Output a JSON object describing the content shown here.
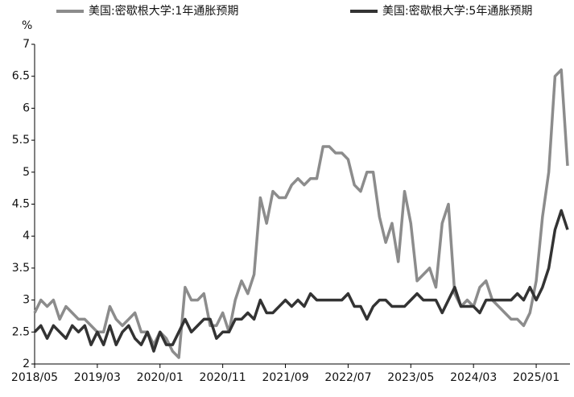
{
  "chart_data": {
    "type": "line",
    "y_label": "%",
    "categories": [
      "2018/05",
      null,
      null,
      null,
      null,
      null,
      null,
      null,
      null,
      null,
      "2019/03",
      null,
      null,
      null,
      null,
      null,
      null,
      null,
      null,
      null,
      "2020/01",
      null,
      null,
      null,
      null,
      null,
      null,
      null,
      null,
      null,
      "2020/11",
      null,
      null,
      null,
      null,
      null,
      null,
      null,
      null,
      null,
      "2021/09",
      null,
      null,
      null,
      null,
      null,
      null,
      null,
      null,
      null,
      "2022/07",
      null,
      null,
      null,
      null,
      null,
      null,
      null,
      null,
      null,
      "2023/05",
      null,
      null,
      null,
      null,
      null,
      null,
      null,
      null,
      null,
      "2024/03",
      null,
      null,
      null,
      null,
      null,
      null,
      null,
      null,
      null,
      "2025/01",
      null,
      null,
      null,
      null,
      null
    ],
    "series": [
      {
        "name": "美国:密歇根大学:1年通胀预期",
        "color": "#8c8c8c",
        "values": [
          2.8,
          3.0,
          2.9,
          3.0,
          2.7,
          2.9,
          2.8,
          2.7,
          2.7,
          2.6,
          2.5,
          2.5,
          2.9,
          2.7,
          2.6,
          2.7,
          2.8,
          2.5,
          2.5,
          2.3,
          2.5,
          2.4,
          2.2,
          2.1,
          3.2,
          3.0,
          3.0,
          3.1,
          2.6,
          2.6,
          2.8,
          2.5,
          3.0,
          3.3,
          3.1,
          3.4,
          4.6,
          4.2,
          4.7,
          4.6,
          4.6,
          4.8,
          4.9,
          4.8,
          4.9,
          4.9,
          5.4,
          5.4,
          5.3,
          5.3,
          5.2,
          4.8,
          4.7,
          5.0,
          5.0,
          4.3,
          3.9,
          4.2,
          3.6,
          4.7,
          4.2,
          3.3,
          3.4,
          3.5,
          3.2,
          4.2,
          4.5,
          3.1,
          2.9,
          3.0,
          2.9,
          3.2,
          3.3,
          3.0,
          2.9,
          2.8,
          2.7,
          2.7,
          2.6,
          2.8,
          3.3,
          4.3,
          5.0,
          6.5,
          6.6,
          5.1
        ]
      },
      {
        "name": "美国:密歇根大学:5年通胀预期",
        "color": "#333333",
        "values": [
          2.5,
          2.6,
          2.4,
          2.6,
          2.5,
          2.4,
          2.6,
          2.5,
          2.6,
          2.3,
          2.5,
          2.3,
          2.6,
          2.3,
          2.5,
          2.6,
          2.4,
          2.3,
          2.5,
          2.2,
          2.5,
          2.3,
          2.3,
          2.5,
          2.7,
          2.5,
          2.6,
          2.7,
          2.7,
          2.4,
          2.5,
          2.5,
          2.7,
          2.7,
          2.8,
          2.7,
          3.0,
          2.8,
          2.8,
          2.9,
          3.0,
          2.9,
          3.0,
          2.9,
          3.1,
          3.0,
          3.0,
          3.0,
          3.0,
          3.0,
          3.1,
          2.9,
          2.9,
          2.7,
          2.9,
          3.0,
          3.0,
          2.9,
          2.9,
          2.9,
          3.0,
          3.1,
          3.0,
          3.0,
          3.0,
          2.8,
          3.0,
          3.2,
          2.9,
          2.9,
          2.9,
          2.8,
          3.0,
          3.0,
          3.0,
          3.0,
          3.0,
          3.1,
          3.0,
          3.2,
          3.0,
          3.2,
          3.5,
          4.1,
          4.4,
          4.1
        ]
      }
    ],
    "ylim": [
      2,
      7
    ],
    "yticks": [
      2,
      2.5,
      3,
      3.5,
      4,
      4.5,
      5,
      5.5,
      6,
      6.5,
      7
    ],
    "grid": false,
    "legend": "top"
  }
}
